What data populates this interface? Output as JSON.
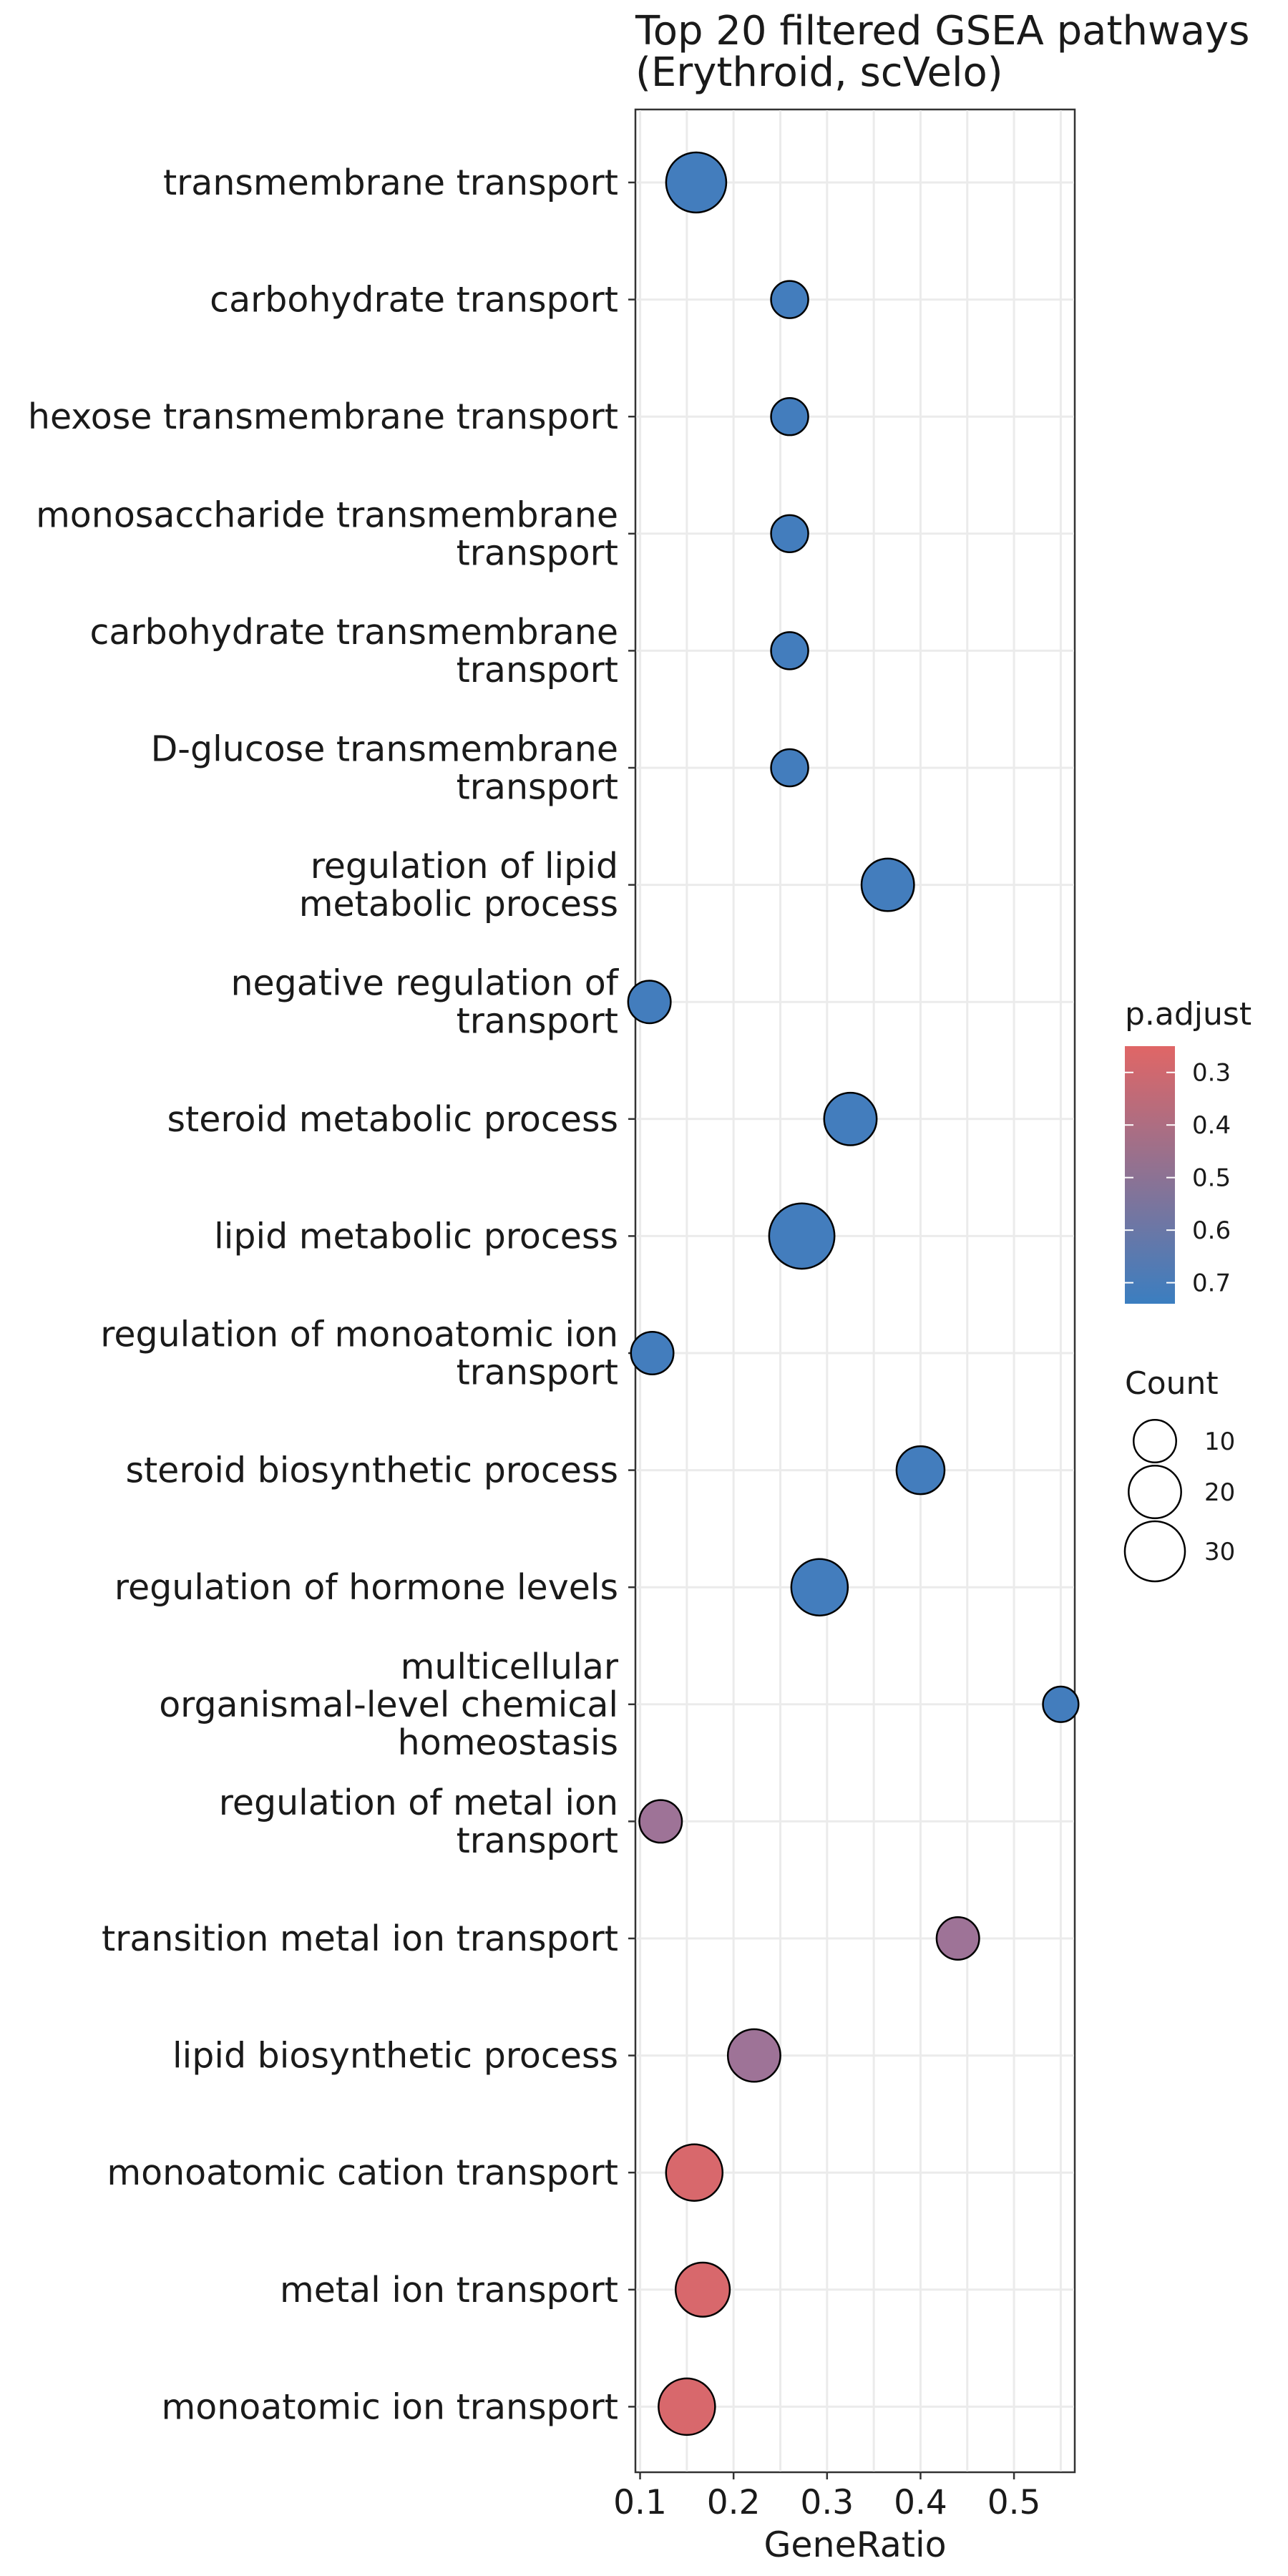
{
  "chart_data": {
    "type": "scatter",
    "title": "Top 20 filtered GSEA pathways\n(Erythroid, scVelo)",
    "xlabel": "GeneRatio",
    "ylabel": "",
    "xlim": [
      0.095,
      0.565
    ],
    "xticks": [
      {
        "value": 0.1,
        "label": "0.1"
      },
      {
        "value": 0.2,
        "label": "0.2"
      },
      {
        "value": 0.3,
        "label": "0.3"
      },
      {
        "value": 0.4,
        "label": "0.4"
      },
      {
        "value": 0.5,
        "label": "0.5"
      }
    ],
    "grid": true,
    "points": [
      {
        "label": "transmembrane transport",
        "x": 0.16,
        "count": 30,
        "p_adjust": 0.72
      },
      {
        "label": "carbohydrate transport",
        "x": 0.26,
        "count": 6,
        "p_adjust": 0.72
      },
      {
        "label": "hexose transmembrane transport",
        "x": 0.26,
        "count": 6,
        "p_adjust": 0.72
      },
      {
        "label": "monosaccharide transmembrane\ntransport",
        "x": 0.26,
        "count": 6,
        "p_adjust": 0.72
      },
      {
        "label": "carbohydrate transmembrane\ntransport",
        "x": 0.26,
        "count": 6,
        "p_adjust": 0.72
      },
      {
        "label": "D-glucose transmembrane\ntransport",
        "x": 0.26,
        "count": 6,
        "p_adjust": 0.72
      },
      {
        "label": "regulation of lipid\nmetabolic process",
        "x": 0.365,
        "count": 20,
        "p_adjust": 0.72
      },
      {
        "label": "negative regulation of\ntransport",
        "x": 0.11,
        "count": 10,
        "p_adjust": 0.72
      },
      {
        "label": "steroid metabolic process",
        "x": 0.325,
        "count": 20,
        "p_adjust": 0.72
      },
      {
        "label": "lipid metabolic process",
        "x": 0.273,
        "count": 38,
        "p_adjust": 0.72
      },
      {
        "label": "regulation of monoatomic ion\ntransport",
        "x": 0.113,
        "count": 10,
        "p_adjust": 0.72
      },
      {
        "label": "steroid biosynthetic process",
        "x": 0.4,
        "count": 15,
        "p_adjust": 0.72
      },
      {
        "label": "regulation of hormone levels",
        "x": 0.292,
        "count": 25,
        "p_adjust": 0.72
      },
      {
        "label": "multicellular\norganismal-level chemical\nhomeostasis",
        "x": 0.55,
        "count": 5,
        "p_adjust": 0.72
      },
      {
        "label": "regulation of metal ion\ntransport",
        "x": 0.122,
        "count": 10,
        "p_adjust": 0.5
      },
      {
        "label": "transition metal ion transport",
        "x": 0.44,
        "count": 10,
        "p_adjust": 0.5
      },
      {
        "label": "lipid biosynthetic process",
        "x": 0.222,
        "count": 20,
        "p_adjust": 0.5
      },
      {
        "label": "monoatomic cation transport",
        "x": 0.158,
        "count": 25,
        "p_adjust": 0.28
      },
      {
        "label": "metal ion transport",
        "x": 0.167,
        "count": 22,
        "p_adjust": 0.28
      },
      {
        "label": "monoatomic ion transport",
        "x": 0.15,
        "count": 25,
        "p_adjust": 0.28
      }
    ],
    "color_legend": {
      "title": "p.adjust",
      "ticks": [
        {
          "value": 0.3,
          "label": "0.3"
        },
        {
          "value": 0.4,
          "label": "0.4"
        },
        {
          "value": 0.5,
          "label": "0.5"
        },
        {
          "value": 0.6,
          "label": "0.6"
        },
        {
          "value": 0.7,
          "label": "0.7"
        }
      ],
      "range": [
        0.25,
        0.74
      ],
      "low_color": "#E06666",
      "high_color": "#3B7EC0"
    },
    "size_legend": {
      "title": "Count",
      "entries": [
        {
          "value": 10,
          "label": "10"
        },
        {
          "value": 20,
          "label": "20"
        },
        {
          "value": 30,
          "label": "30"
        }
      ]
    },
    "point_stroke_color": "#000000",
    "grid_color": "#EBEBEB",
    "panel_border_color": "#333333"
  }
}
